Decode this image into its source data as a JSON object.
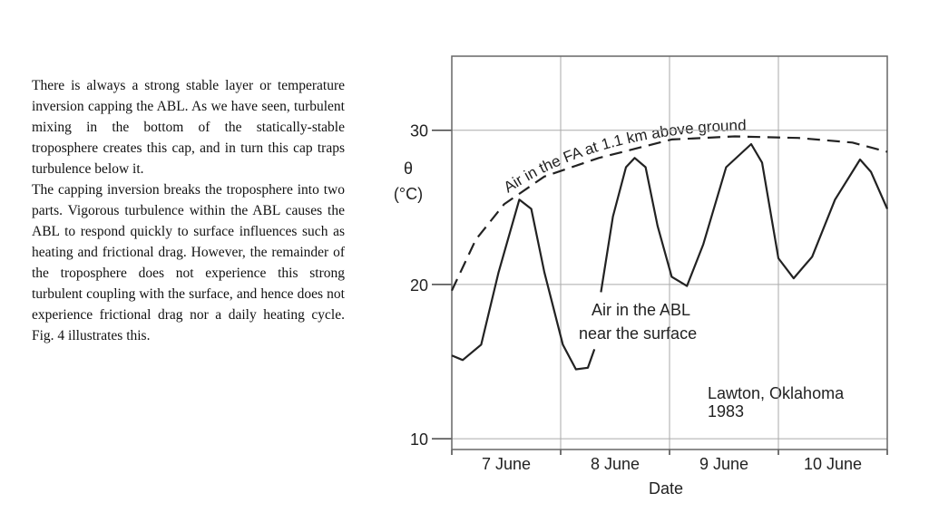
{
  "text": {
    "paragraphs": [
      "There is always a strong stable layer or temperature inversion capping the ABL. As we have seen, turbulent mixing in the bottom of the statically-stable troposphere creates this cap, and in turn this cap traps turbulence below it.",
      "The capping inversion breaks the troposphere into two parts. Vigorous turbulence within the ABL causes the ABL to respond quickly to surface influences such as heating and frictional drag. However, the remainder of the troposphere does not experience this strong turbulent coupling with the surface, and hence does not experience frictional drag nor a daily heating cycle. Fig. 4 illustrates this."
    ]
  },
  "chart_data": {
    "type": "line",
    "y_label": [
      "θ",
      "(°C)"
    ],
    "x_label": "Date",
    "categories": [
      "7 June",
      "8 June",
      "9 June",
      "10 June"
    ],
    "xlim": [
      0,
      4
    ],
    "ylim": [
      9.3,
      34.8
    ],
    "yticks": [
      10,
      20,
      30
    ],
    "grid": true,
    "series": [
      {
        "color": "#222222",
        "dash": false,
        "x": [
          0,
          0.1,
          0.27,
          0.43,
          0.62,
          0.73,
          0.85,
          1.02,
          1.14,
          1.25,
          1.31,
          null,
          1.37,
          1.48,
          1.6,
          1.68,
          1.78,
          1.89,
          2.02,
          2.16,
          2.31,
          2.52,
          2.75,
          2.85,
          3.0,
          3.14,
          3.31,
          3.52,
          3.75,
          3.85,
          4.0
        ],
        "values": [
          15.4,
          15.1,
          16.1,
          20.8,
          25.5,
          24.9,
          20.8,
          16.1,
          14.5,
          14.6,
          15.8,
          null,
          19.5,
          24.4,
          27.6,
          28.2,
          27.6,
          23.8,
          20.5,
          19.9,
          22.6,
          27.6,
          29.1,
          27.9,
          21.7,
          20.4,
          21.8,
          25.5,
          28.1,
          27.3,
          24.9
        ]
      },
      {
        "color": "#222222",
        "dash": true,
        "x": [
          0,
          0.22,
          0.48,
          0.85,
          1.35,
          2.02,
          2.6,
          3.18,
          3.68,
          4.0
        ],
        "values": [
          19.6,
          22.9,
          25.2,
          27.0,
          28.2,
          29.4,
          29.6,
          29.5,
          29.2,
          28.6
        ]
      }
    ],
    "annotations": {
      "fa": "Air in the FA at 1.1 km above ground",
      "abl": [
        "Air in the ABL",
        "near the surface"
      ],
      "site": [
        "Lawton, Oklahoma",
        "1983"
      ]
    }
  }
}
